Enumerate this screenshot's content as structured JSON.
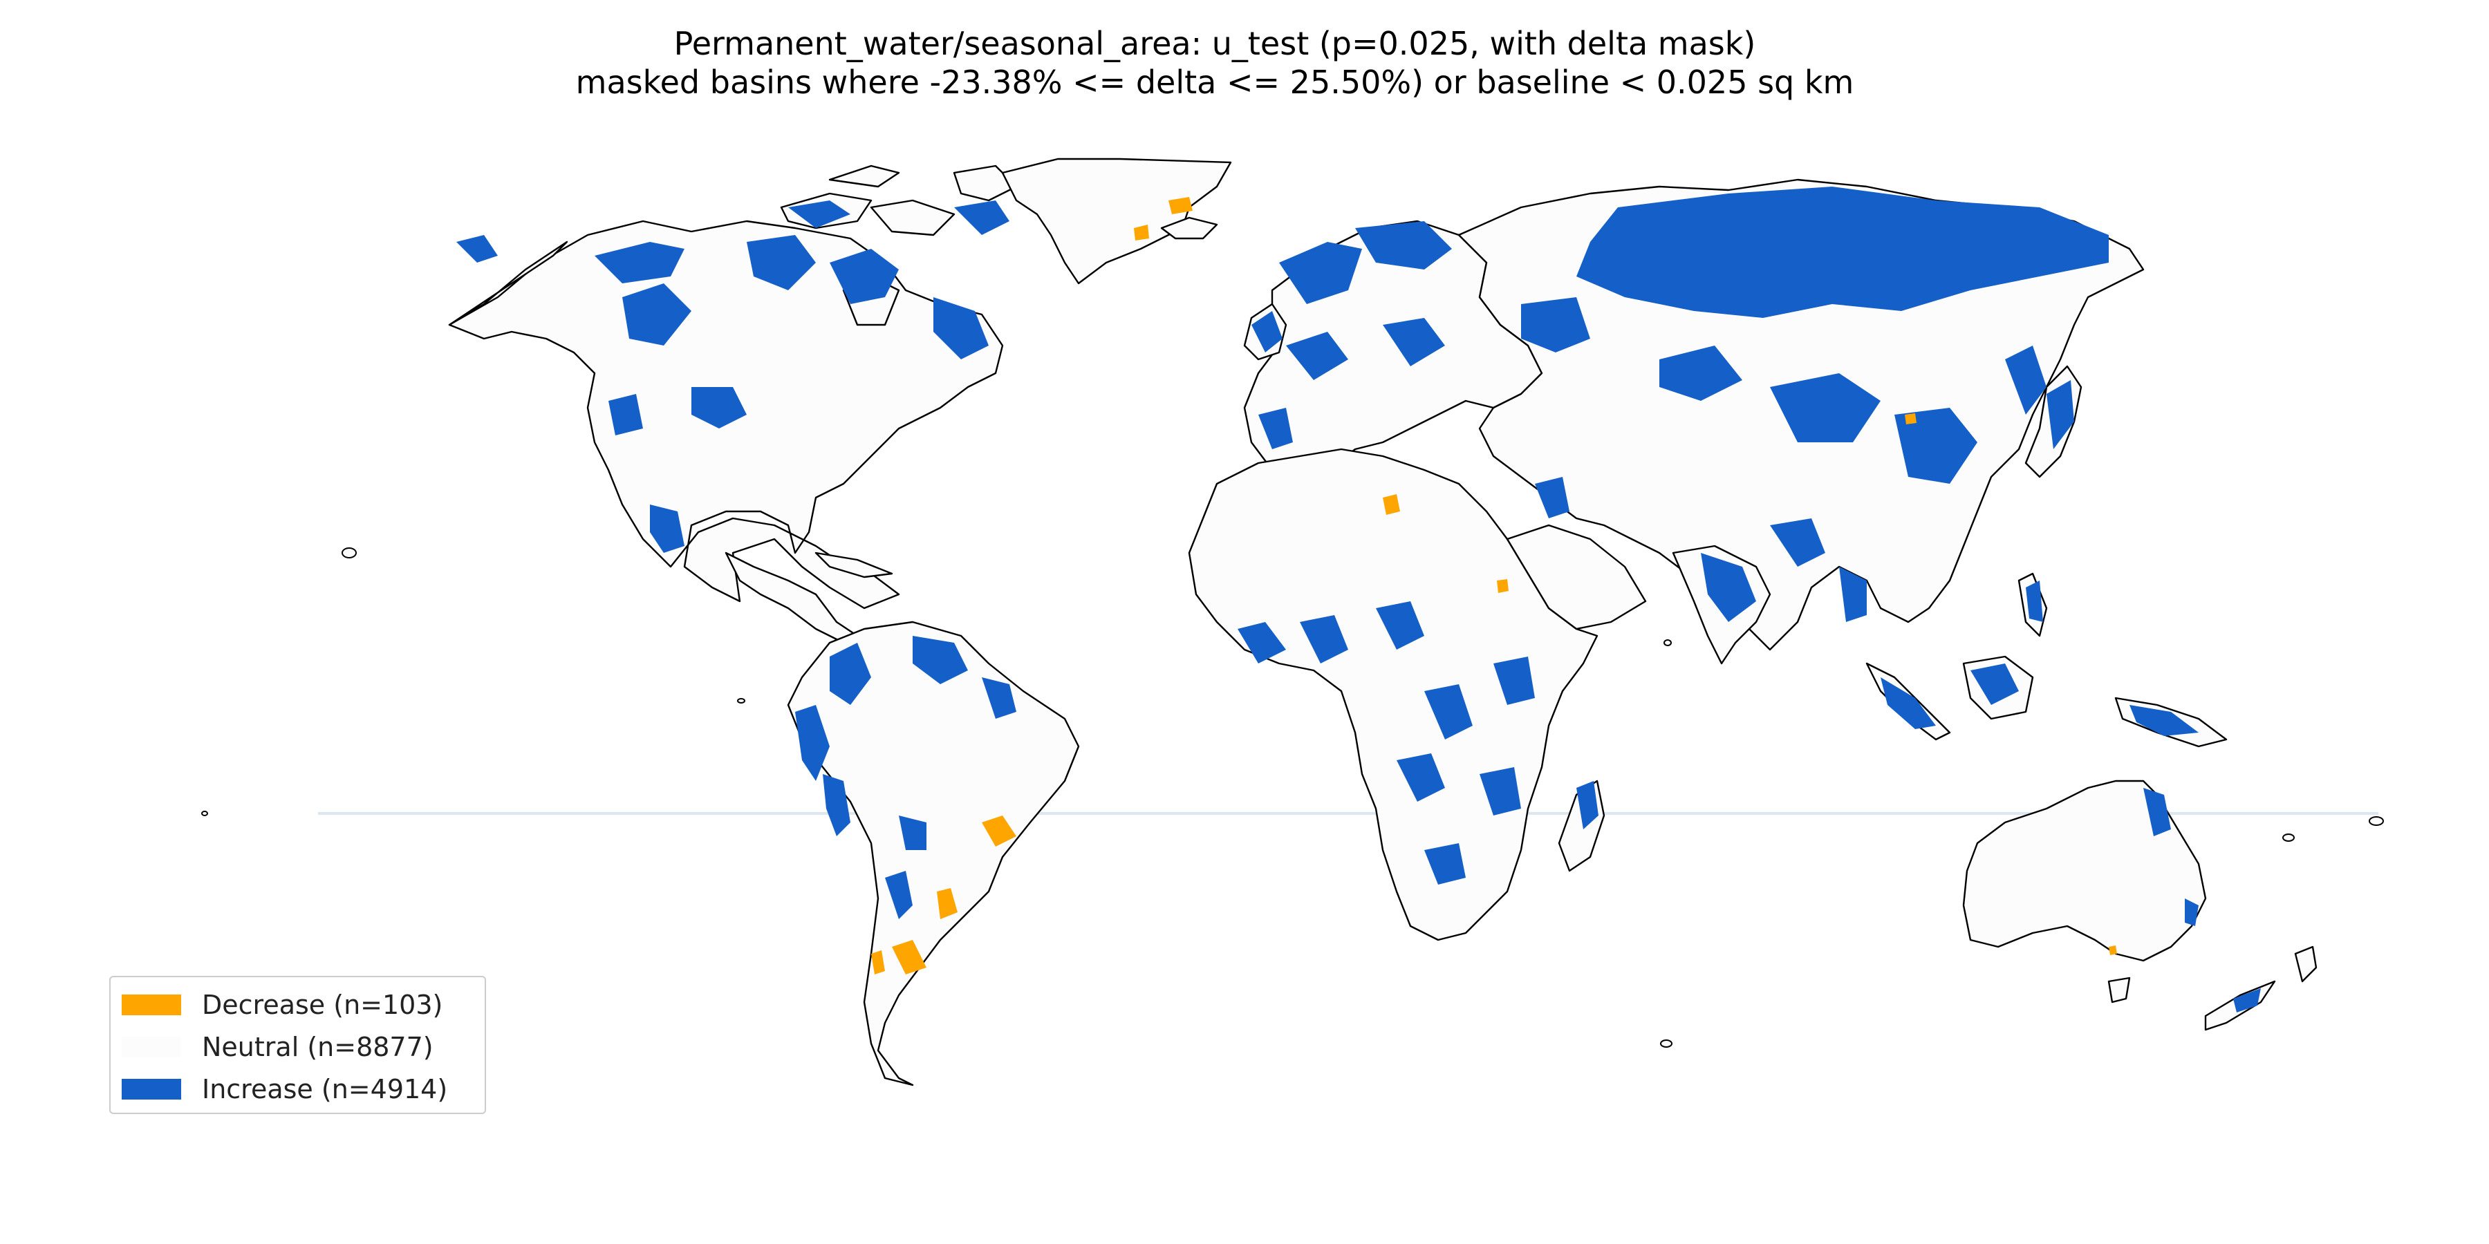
{
  "title": {
    "line1": "Permanent_water/seasonal_area: u_test (p=0.025, with delta mask)",
    "line2": "masked basins where -23.38% <= delta <= 25.50%) or baseline < 0.025 sq km"
  },
  "colors": {
    "decrease": "#ffa500",
    "neutral": "#fcfcfc",
    "increase": "#1560c8",
    "border": "#000000"
  },
  "legend": [
    {
      "label": "Decrease (n=103)",
      "color": "#ffa500"
    },
    {
      "label": "Neutral (n=8877)",
      "color": "#fcfcfc"
    },
    {
      "label": "Increase (n=4914)",
      "color": "#1560c8"
    }
  ]
}
